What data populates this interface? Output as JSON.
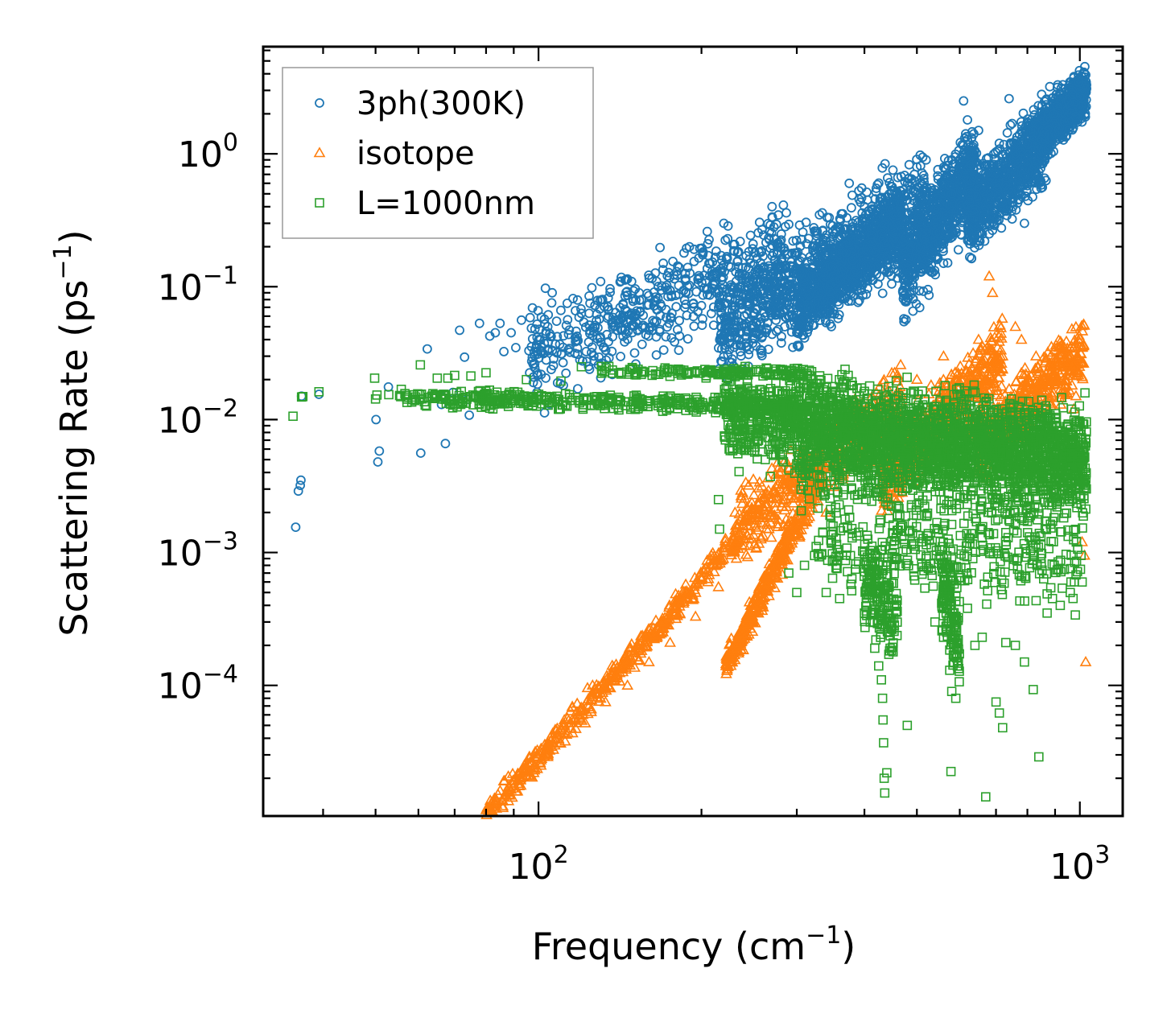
{
  "chart_data": {
    "type": "scatter",
    "title": "",
    "xlabel": {
      "text": "Frequency (cm",
      "sup": "−1",
      "close": ")"
    },
    "ylabel": {
      "text": "Scattering Rate (ps",
      "sup": "−1",
      "close": ")"
    },
    "xscale": "log",
    "yscale": "log",
    "xlim": [
      31,
      1200
    ],
    "ylim": [
      1.04e-05,
      6.4
    ],
    "grid": false,
    "legend_position": "upper-left",
    "x_ticks": [
      {
        "value": 100,
        "base": "10",
        "exp": "2"
      },
      {
        "value": 1000,
        "base": "10",
        "exp": "3"
      }
    ],
    "y_ticks": [
      {
        "value": 1,
        "base": "10",
        "exp": "0"
      },
      {
        "value": 0.1,
        "base": "10",
        "exp": "−1"
      },
      {
        "value": 0.01,
        "base": "10",
        "exp": "−2"
      },
      {
        "value": 0.001,
        "base": "10",
        "exp": "−3"
      },
      {
        "value": 0.0001,
        "base": "10",
        "exp": "−4"
      }
    ],
    "series": [
      {
        "name": "3ph(300K)",
        "marker": "circle",
        "color": "#1f77b4",
        "points": [
          [
            35.6,
            0.00155
          ],
          [
            36,
            0.0029
          ],
          [
            36.3,
            0.0032
          ],
          [
            36.4,
            0.0035
          ],
          [
            36.5,
            0.015
          ],
          [
            39.3,
            0.0155
          ],
          [
            50.1,
            0.01
          ],
          [
            50.5,
            0.0048
          ],
          [
            50.8,
            0.0058
          ],
          [
            52.8,
            0.0176
          ],
          [
            60.6,
            0.0056
          ],
          [
            62.3,
            0.034
          ],
          [
            66.2,
            0.013
          ],
          [
            66.4,
            0.0147
          ],
          [
            67.3,
            0.0066
          ],
          [
            69.5,
            0.016
          ],
          [
            73,
            0.0295
          ],
          [
            74.5,
            0.0108
          ],
          [
            74,
            0.0142
          ],
          [
            71.5,
            0.047
          ],
          [
            77.8,
            0.053
          ],
          [
            84.9,
            0.053
          ],
          [
            83.2,
            0.045
          ],
          [
            81.3,
            0.0425
          ],
          [
            86.3,
            0.0325
          ],
          [
            89,
            0.045
          ],
          [
            90.8,
            0.0348
          ],
          [
            93,
            0.056
          ],
          [
            96,
            0.033
          ],
          [
            98.5,
            0.048
          ],
          [
            104,
            0.05
          ],
          [
            106,
            0.09
          ],
          [
            108,
            0.055
          ],
          [
            111,
            0.035
          ],
          [
            113,
            0.075
          ],
          [
            117,
            0.066
          ],
          [
            120,
            0.063
          ],
          [
            124,
            0.085
          ],
          [
            126,
            0.049
          ],
          [
            130,
            0.079
          ],
          [
            134,
            0.058
          ],
          [
            137,
            0.042
          ],
          [
            142,
            0.11
          ],
          [
            150,
            0.06
          ],
          [
            155,
            0.08
          ],
          [
            162,
            0.05
          ],
          [
            170,
            0.15
          ],
          [
            180,
            0.13
          ],
          [
            190,
            0.2
          ],
          [
            205,
            0.26
          ],
          [
            220,
            0.3
          ],
          [
            230,
            0.035
          ],
          [
            235,
            0.04
          ],
          [
            245,
            0.055
          ],
          [
            260,
            0.075
          ],
          [
            270,
            0.4
          ],
          [
            285,
            0.05
          ],
          [
            295,
            0.035
          ],
          [
            300,
            0.045
          ],
          [
            315,
            0.07
          ],
          [
            330,
            0.09
          ],
          [
            350,
            0.12
          ],
          [
            370,
            0.18
          ],
          [
            375,
            0.6
          ],
          [
            400,
            0.4
          ],
          [
            430,
            0.25
          ],
          [
            460,
            0.3
          ],
          [
            490,
            0.6
          ],
          [
            520,
            0.9
          ],
          [
            560,
            0.15
          ],
          [
            580,
            0.5
          ],
          [
            610,
            2.5
          ],
          [
            620,
            1.8
          ],
          [
            650,
            1.5
          ],
          [
            680,
            0.25
          ],
          [
            710,
            1.2
          ],
          [
            740,
            2.6
          ],
          [
            760,
            1.0
          ],
          [
            790,
            0.3
          ],
          [
            820,
            1.5
          ],
          [
            850,
            2.8
          ],
          [
            880,
            3.2
          ],
          [
            910,
            3.3
          ],
          [
            940,
            3.1
          ],
          [
            970,
            2.8
          ],
          [
            1010,
            2.6
          ]
        ],
        "bands": [
          {
            "x_from": 95,
            "x_to": 290,
            "y_from": 0.028,
            "y_to": 0.19,
            "y_spread": 3.2,
            "count": 520,
            "seed": 11
          },
          {
            "x_from": 215,
            "x_to": 520,
            "y_from": 0.045,
            "y_to": 0.45,
            "y_spread": 3.6,
            "count": 900,
            "seed": 12
          },
          {
            "x_from": 300,
            "x_to": 470,
            "y_from": 0.07,
            "y_to": 0.3,
            "y_spread": 2.5,
            "count": 900,
            "seed": 13
          },
          {
            "x_from": 470,
            "x_to": 640,
            "y_from": 0.12,
            "y_to": 0.8,
            "y_spread": 3.2,
            "count": 800,
            "seed": 14
          },
          {
            "x_from": 620,
            "x_to": 870,
            "y_from": 0.35,
            "y_to": 1.3,
            "y_spread": 2.8,
            "count": 800,
            "seed": 15
          },
          {
            "x_from": 850,
            "x_to": 1030,
            "y_from": 1.4,
            "y_to": 3.0,
            "y_spread": 1.8,
            "count": 700,
            "seed": 16
          }
        ]
      },
      {
        "name": "isotope",
        "marker": "triangle",
        "color": "#ff7f0e",
        "points": [
          [
            78,
            9.5e-06
          ],
          [
            82,
            1.15e-05
          ],
          [
            88,
            1.35e-05
          ],
          [
            92,
            1.75e-05
          ],
          [
            98,
            2.2e-05
          ],
          [
            104,
            2.9e-05
          ],
          [
            112,
            3.8e-05
          ],
          [
            122,
            5.2e-05
          ],
          [
            133,
            7.5e-05
          ],
          [
            146,
            0.0001
          ],
          [
            160,
            0.00015
          ],
          [
            175,
            0.00021
          ],
          [
            195,
            0.00033
          ],
          [
            215,
            0.00055
          ],
          [
            232,
            0.0009
          ],
          [
            222,
            0.00014
          ],
          [
            225,
            0.00017
          ],
          [
            235,
            0.00025
          ],
          [
            250,
            0.0004
          ],
          [
            268,
            0.00075
          ],
          [
            290,
            0.0013
          ],
          [
            340,
            0.002
          ],
          [
            400,
            0.005
          ],
          [
            450,
            0.012
          ],
          [
            500,
            0.02
          ],
          [
            560,
            0.03
          ],
          [
            600,
            0.015
          ],
          [
            650,
            0.04
          ],
          [
            680,
            0.12
          ],
          [
            690,
            0.09
          ],
          [
            720,
            0.03
          ],
          [
            760,
            0.05
          ],
          [
            780,
            0.04
          ],
          [
            830,
            0.03
          ],
          [
            880,
            0.025
          ],
          [
            900,
            0.02
          ],
          [
            940,
            0.02
          ],
          [
            975,
            0.012
          ],
          [
            1010,
            0.0012
          ],
          [
            1020,
            0.00095
          ],
          [
            1025,
            0.00015
          ]
        ],
        "bands": [
          {
            "x_from": 80,
            "x_to": 235,
            "y_from": 1.05e-05,
            "y_to": 0.0013,
            "y_spread": 1.35,
            "count": 480,
            "seed": 21
          },
          {
            "x_from": 222,
            "x_to": 330,
            "y_from": 0.00014,
            "y_to": 0.0035,
            "y_spread": 1.5,
            "count": 380,
            "seed": 22
          },
          {
            "x_from": 230,
            "x_to": 470,
            "y_from": 0.0015,
            "y_to": 0.014,
            "y_spread": 2.4,
            "count": 520,
            "seed": 23
          },
          {
            "x_from": 430,
            "x_to": 720,
            "y_from": 0.0035,
            "y_to": 0.03,
            "y_spread": 2.4,
            "count": 600,
            "seed": 24
          },
          {
            "x_from": 650,
            "x_to": 1020,
            "y_from": 0.006,
            "y_to": 0.035,
            "y_spread": 2.2,
            "count": 520,
            "seed": 25
          }
        ]
      },
      {
        "name": "L=1000nm",
        "marker": "square",
        "color": "#2ca02c",
        "points": [
          [
            35.2,
            0.0106
          ],
          [
            36.5,
            0.0148
          ],
          [
            36.7,
            0.0149
          ],
          [
            39.3,
            0.0162
          ],
          [
            49.8,
            0.0205
          ],
          [
            50,
            0.0143
          ],
          [
            50.3,
            0.0153
          ],
          [
            52.9,
            0.0154
          ],
          [
            60.5,
            0.0258
          ],
          [
            63.5,
            0.015
          ],
          [
            65,
            0.0205
          ],
          [
            68,
            0.0205
          ],
          [
            70,
            0.0215
          ],
          [
            72,
            0.0163
          ],
          [
            75,
            0.0213
          ],
          [
            80,
            0.0225
          ],
          [
            85,
            0.014
          ],
          [
            95,
            0.02
          ],
          [
            110,
            0.0195
          ],
          [
            120,
            0.025
          ],
          [
            215,
            0.0025
          ],
          [
            216,
            0.0015
          ],
          [
            225,
            0.006
          ],
          [
            290,
            0.0007
          ],
          [
            300,
            0.0005
          ],
          [
            310,
            0.0008
          ],
          [
            340,
            0.0005
          ],
          [
            360,
            0.00045
          ],
          [
            390,
            0.00085
          ],
          [
            400,
            0.00035
          ],
          [
            410,
            0.0003
          ],
          [
            420,
            0.00022
          ],
          [
            425,
            0.00014
          ],
          [
            430,
            0.00011
          ],
          [
            432,
            8e-05
          ],
          [
            433,
            5.5e-05
          ],
          [
            434,
            3.7e-05
          ],
          [
            435,
            2e-05
          ],
          [
            436,
            1.55e-05
          ],
          [
            440,
            2.2e-05
          ],
          [
            480,
            5e-05
          ],
          [
            520,
            0.0009
          ],
          [
            540,
            0.0003
          ],
          [
            560,
            0.00023
          ],
          [
            575,
            0.00013
          ],
          [
            578,
            2.25e-05
          ],
          [
            580,
            9e-05
          ],
          [
            590,
            8e-05
          ],
          [
            620,
            0.00038
          ],
          [
            640,
            0.0002
          ],
          [
            660,
            0.00023
          ],
          [
            670,
            1.45e-05
          ],
          [
            700,
            7.5e-05
          ],
          [
            710,
            6.2e-05
          ],
          [
            720,
            4.8e-05
          ],
          [
            730,
            0.00021
          ],
          [
            760,
            0.0002
          ],
          [
            790,
            0.00015
          ],
          [
            820,
            9.3e-05
          ],
          [
            840,
            2.9e-05
          ],
          [
            870,
            0.00035
          ],
          [
            890,
            0.00045
          ],
          [
            920,
            0.0004
          ],
          [
            960,
            0.0005
          ],
          [
            985,
            0.0012
          ],
          [
            1000,
            0.0026
          ],
          [
            1005,
            0.00095
          ],
          [
            1010,
            0.0006
          ]
        ],
        "bands": [
          {
            "x_from": 55,
            "x_to": 300,
            "y_from": 0.0148,
            "y_to": 0.0125,
            "y_spread": 1.22,
            "count": 420,
            "seed": 31
          },
          {
            "x_from": 130,
            "x_to": 320,
            "y_from": 0.023,
            "y_to": 0.0225,
            "y_spread": 1.12,
            "count": 160,
            "seed": 32
          },
          {
            "x_from": 220,
            "x_to": 1030,
            "y_from": 0.011,
            "y_to": 0.0055,
            "y_spread": 3.0,
            "count": 1700,
            "seed": 33
          },
          {
            "x_from": 300,
            "x_to": 1030,
            "y_from": 0.007,
            "y_to": 0.004,
            "y_spread": 4.5,
            "count": 1300,
            "seed": 34
          },
          {
            "x_from": 320,
            "x_to": 1020,
            "y_from": 0.0012,
            "y_to": 0.0008,
            "y_spread": 2.8,
            "count": 320,
            "seed": 35
          },
          {
            "x_from": 400,
            "x_to": 460,
            "y_from": 0.0006,
            "y_to": 0.0003,
            "y_spread": 3.0,
            "count": 160,
            "seed": 36
          },
          {
            "x_from": 555,
            "x_to": 600,
            "y_from": 0.0006,
            "y_to": 0.0002,
            "y_spread": 3.0,
            "count": 140,
            "seed": 37
          }
        ]
      }
    ]
  }
}
